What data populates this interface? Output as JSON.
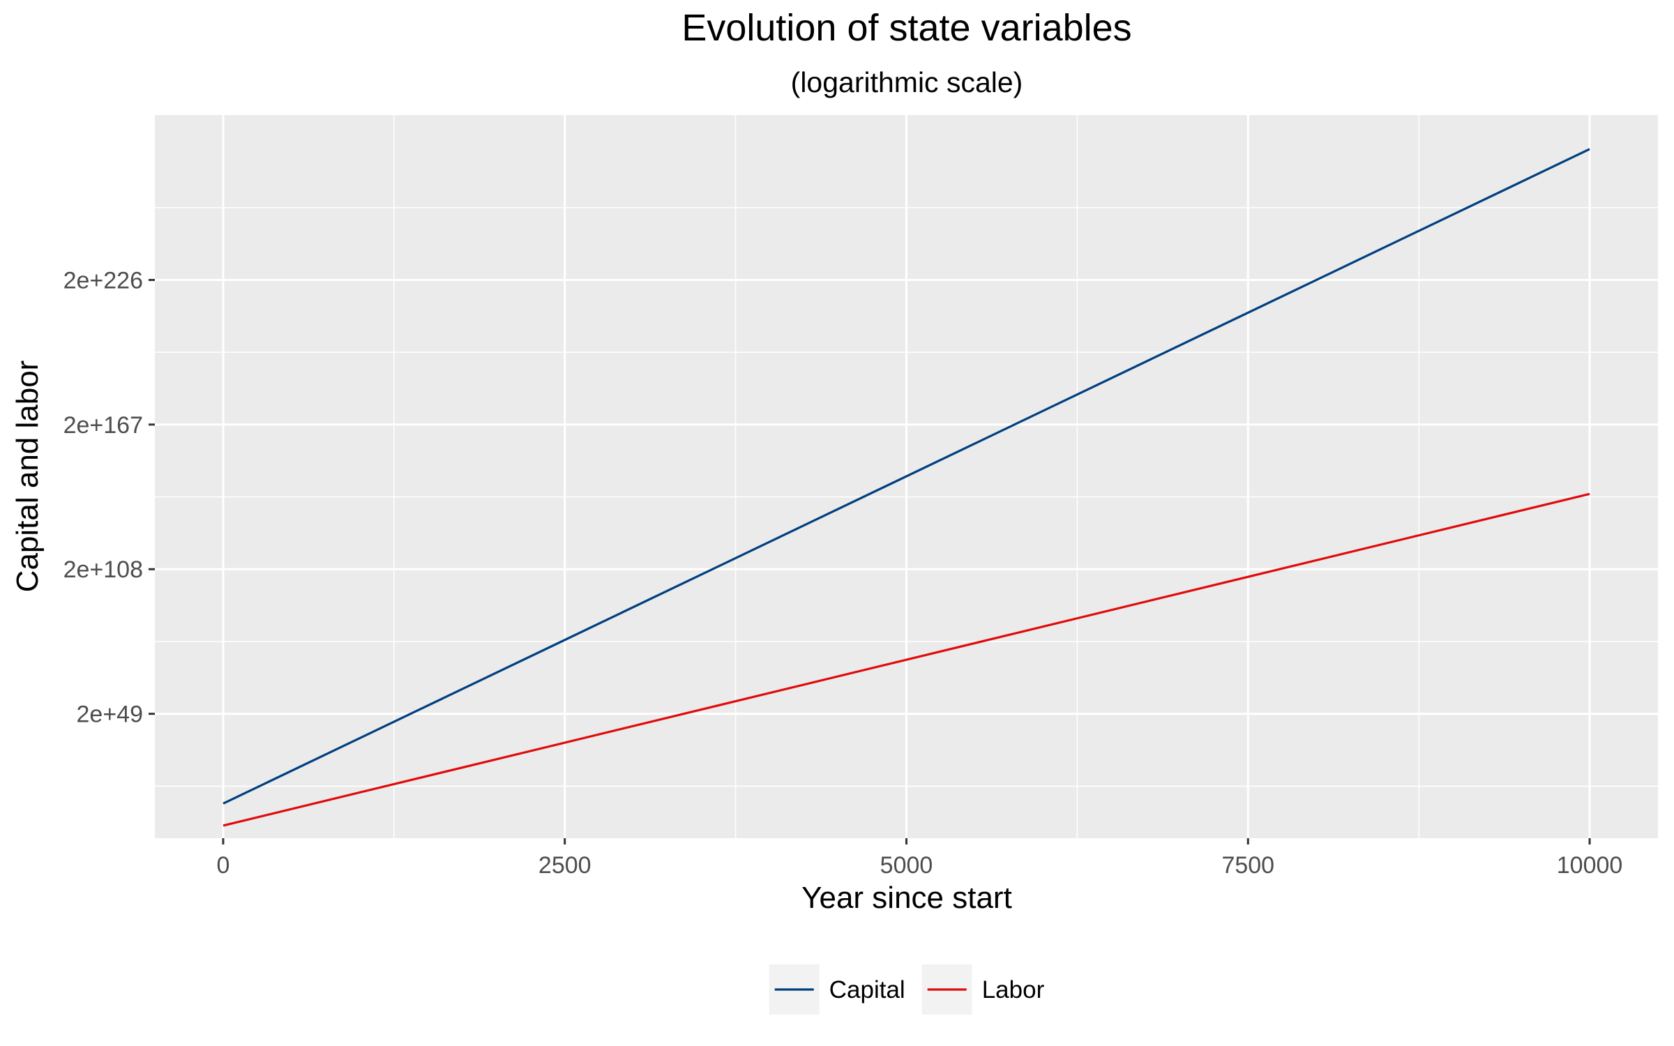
{
  "chart_data": {
    "type": "line",
    "title": "Evolution of state variables",
    "subtitle": "(logarithmic scale)",
    "xlabel": "Year since start",
    "ylabel": "Capital and labor",
    "x_scale": "linear",
    "y_scale": "log",
    "xlim": [
      -500,
      10500
    ],
    "ylim_log10": [
      -1.44,
      293.57
    ],
    "x_ticks": [
      0,
      2500,
      5000,
      7500,
      10000
    ],
    "x_tick_labels": [
      "0",
      "2500",
      "5000",
      "7500",
      "10000"
    ],
    "y_ticks_log10": [
      49.301,
      108.301,
      167.301,
      226.301
    ],
    "y_tick_labels": [
      "2e+49",
      "2e+108",
      "2e+167",
      "2e+226"
    ],
    "grid": true,
    "legend_position": "bottom",
    "series": [
      {
        "name": "Capital",
        "color": "#003f7f",
        "x": [
          0,
          10000
        ],
        "y_log10": [
          12.7,
          279.7
        ]
      },
      {
        "name": "Labor",
        "color": "#e00b0b",
        "x": [
          0,
          10000
        ],
        "y_log10": [
          3.7,
          139.0
        ]
      }
    ]
  },
  "colors": {
    "panel_background": "#ebebeb",
    "grid_major": "#ffffff",
    "legend_key_background": "#f2f2f2"
  }
}
